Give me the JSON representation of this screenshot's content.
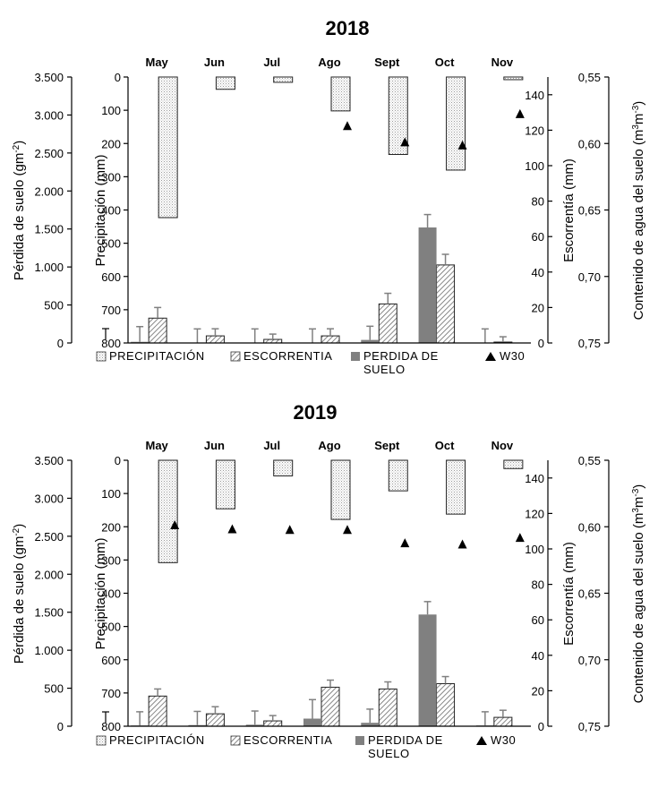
{
  "chart_data": [
    {
      "type": "bar",
      "title": "2018",
      "categories": [
        "May",
        "Jun",
        "Jul",
        "Ago",
        "Sept",
        "Oct",
        "Nov"
      ],
      "axes": {
        "soil_loss": {
          "label": "Pérdida de suelo (gm",
          "label_sup": "-2",
          "label_end": ")",
          "range": [
            0,
            3500
          ],
          "ticks": [
            "0",
            "500",
            "1.000",
            "1.500",
            "2.000",
            "2.500",
            "3.000",
            "3.500"
          ]
        },
        "precipitation": {
          "label": "Precipitación (mm)",
          "range": [
            0,
            800
          ],
          "inverted": true,
          "ticks": [
            "0",
            "100",
            "200",
            "300",
            "400",
            "500",
            "600",
            "700",
            "800"
          ]
        },
        "runoff": {
          "label": "Escorrentía (mm)",
          "range": [
            0,
            150
          ],
          "ticks": [
            "0",
            "20",
            "40",
            "60",
            "80",
            "100",
            "120",
            "140"
          ]
        },
        "soil_water": {
          "label": "Contenido de agua del suelo (m",
          "label_sup1": "3",
          "label_mid": "m",
          "label_sup2": "-3",
          "label_end": ")",
          "range": [
            0.55,
            0.75
          ],
          "inverted": true,
          "ticks": [
            "0,55",
            "0,60",
            "0,65",
            "0,70",
            "0,75"
          ]
        }
      },
      "series": [
        {
          "name": "PRECIPITACIÓN",
          "axis": "precipitation",
          "values": [
            423,
            37,
            16,
            102,
            233,
            280,
            8
          ]
        },
        {
          "name": "ESCORRENTIA",
          "axis": "runoff",
          "values": [
            14,
            4,
            2,
            4,
            22,
            44,
            0.5
          ],
          "errors": [
            6,
            4,
            3,
            4,
            6,
            6,
            3
          ]
        },
        {
          "name": "PERDIDA DE SUELO",
          "axis": "soil_loss",
          "values": [
            15,
            5,
            5,
            5,
            40,
            1520,
            5
          ],
          "errors": [
            200,
            180,
            180,
            180,
            180,
            170,
            180
          ]
        },
        {
          "name": "W30",
          "axis": "soil_water",
          "values": [
            null,
            null,
            null,
            0.5865,
            0.5987,
            0.6011,
            0.5775
          ]
        }
      ]
    },
    {
      "type": "bar",
      "title": "2019",
      "categories": [
        "May",
        "Jun",
        "Jul",
        "Ago",
        "Sept",
        "Oct",
        "Nov"
      ],
      "axes": {
        "soil_loss": {
          "label": "Pérdida de suelo (gm",
          "label_sup": "-2",
          "label_end": ")",
          "range": [
            0,
            3500
          ],
          "ticks": [
            "0",
            "500",
            "1.000",
            "1.500",
            "2.000",
            "2.500",
            "3.000",
            "3.500"
          ]
        },
        "precipitation": {
          "label": "Precipitación (mm)",
          "range": [
            0,
            800
          ],
          "inverted": true,
          "ticks": [
            "0",
            "100",
            "200",
            "300",
            "400",
            "500",
            "600",
            "700",
            "800"
          ]
        },
        "runoff": {
          "label": "Escorrentía (mm)",
          "range": [
            0,
            150
          ],
          "ticks": [
            "0",
            "20",
            "40",
            "60",
            "80",
            "100",
            "120",
            "140"
          ]
        },
        "soil_water": {
          "label": "Contenido de agua del suelo (m",
          "label_sup1": "3",
          "label_mid": "m",
          "label_sup2": "-3",
          "label_end": ")",
          "range": [
            0.55,
            0.75
          ],
          "inverted": true,
          "ticks": [
            "0,55",
            "0,60",
            "0,65",
            "0,70",
            "0,75"
          ]
        }
      },
      "series": [
        {
          "name": "PRECIPITACIÓN",
          "axis": "precipitation",
          "values": [
            308,
            146,
            47,
            178,
            92,
            162,
            25
          ]
        },
        {
          "name": "ESCORRENTIA",
          "axis": "runoff",
          "values": [
            17,
            7,
            3,
            22,
            21,
            24,
            5
          ],
          "errors": [
            4,
            4,
            3,
            4,
            4,
            4,
            4
          ]
        },
        {
          "name": "PERDIDA DE SUELO",
          "axis": "soil_loss",
          "values": [
            10,
            15,
            20,
            100,
            45,
            1470,
            10
          ],
          "errors": [
            180,
            180,
            180,
            250,
            180,
            170,
            180
          ]
        },
        {
          "name": "W30",
          "axis": "soil_water",
          "values": [
            0.5985,
            0.6015,
            0.602,
            0.602,
            0.612,
            0.613,
            0.608
          ]
        }
      ]
    }
  ],
  "legend": {
    "precipitation": "PRECIPITACIÓN",
    "runoff": "ESCORRENTIA",
    "soil_loss_line1": "PERDIDA DE",
    "soil_loss_line2": "SUELO",
    "w30": "W30"
  },
  "colors": {
    "soil_loss": "#808080",
    "axis": "#000000",
    "error": "#808080"
  }
}
